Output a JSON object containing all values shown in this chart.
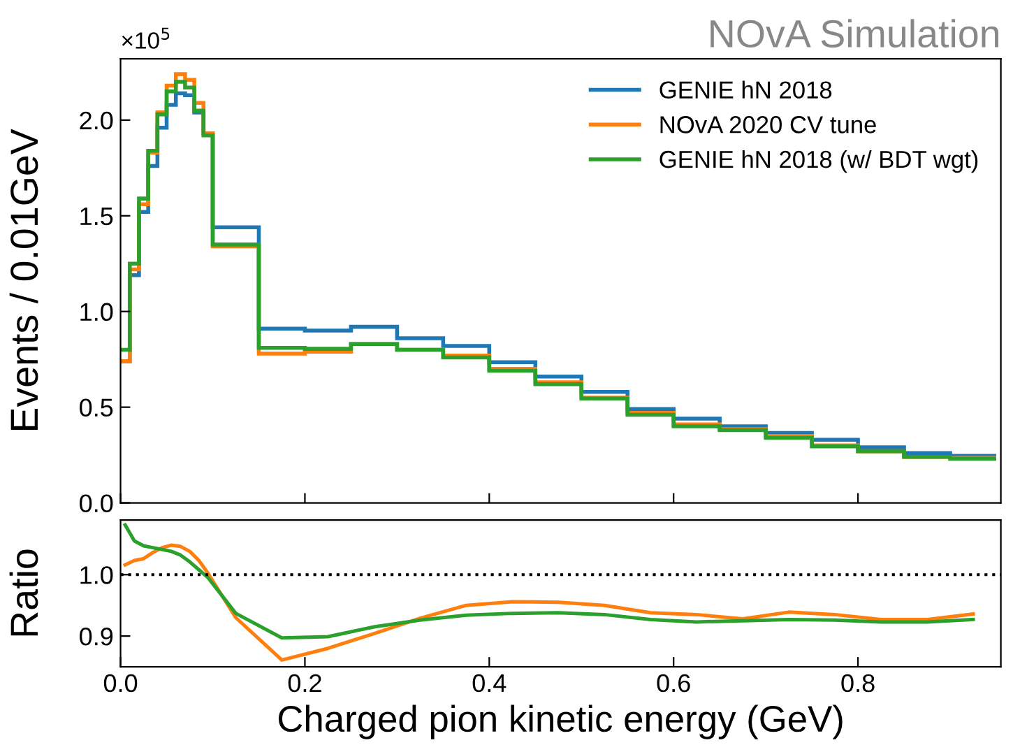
{
  "chart_data": [
    {
      "type": "histogram",
      "title": "NOvA Simulation",
      "ylabel": "Events / 0.01GeV",
      "annotations": [
        "×10$^{5}$"
      ],
      "bins": [
        0,
        0.01,
        0.02,
        0.03,
        0.04,
        0.05,
        0.06,
        0.07,
        0.08,
        0.09,
        0.1,
        0.15,
        0.2,
        0.25,
        0.3,
        0.35,
        0.4,
        0.45,
        0.5,
        0.55,
        0.6,
        0.65,
        0.7,
        0.75,
        0.8,
        0.85,
        0.9,
        0.95
      ],
      "series": [
        {
          "name": "GENIE hN 2018",
          "color": "#1f77b4",
          "values": [
            0.74,
            1.19,
            1.52,
            1.76,
            1.96,
            2.08,
            2.14,
            2.13,
            2.04,
            1.93,
            1.44,
            0.91,
            0.9,
            0.92,
            0.86,
            0.82,
            0.735,
            0.66,
            0.58,
            0.49,
            0.44,
            0.4,
            0.365,
            0.33,
            0.29,
            0.26,
            0.246
          ]
        },
        {
          "name": "NOvA 2020 CV tune",
          "color": "#ff7f0e",
          "values": [
            0.74,
            1.22,
            1.56,
            1.83,
            2.04,
            2.18,
            2.24,
            2.21,
            2.09,
            1.93,
            1.34,
            0.78,
            0.79,
            0.83,
            0.8,
            0.77,
            0.7,
            0.63,
            0.55,
            0.47,
            0.41,
            0.385,
            0.35,
            0.3,
            0.27,
            0.24,
            0.235
          ]
        },
        {
          "name": "GENIE hN 2018 (w/ BDT wgt)",
          "color": "#2ca02c",
          "values": [
            0.8,
            1.25,
            1.59,
            1.84,
            2.03,
            2.15,
            2.2,
            2.17,
            2.05,
            1.92,
            1.35,
            0.81,
            0.805,
            0.83,
            0.8,
            0.76,
            0.69,
            0.62,
            0.545,
            0.46,
            0.4,
            0.38,
            0.34,
            0.295,
            0.27,
            0.24,
            0.23
          ]
        }
      ],
      "xlim": [
        0,
        0.955
      ],
      "xticks": [
        0,
        0.2,
        0.4,
        0.6,
        0.8
      ],
      "tick_labels": "y",
      "ylim": [
        0,
        2.32
      ],
      "yticks": [
        {
          "value": 0,
          "label": "0.0"
        },
        0.5,
        {
          "value": 1,
          "label": "1.0"
        },
        1.5,
        {
          "value": 2,
          "label": "2.0"
        }
      ],
      "legend": "top right",
      "grid": false
    },
    {
      "type": "line",
      "xlabel": "Charged pion kinetic energy (GeV)",
      "ylabel": "Ratio",
      "x": [
        0.005,
        0.015,
        0.025,
        0.035,
        0.045,
        0.055,
        0.065,
        0.075,
        0.085,
        0.095,
        0.125,
        0.175,
        0.225,
        0.275,
        0.325,
        0.375,
        0.425,
        0.475,
        0.525,
        0.575,
        0.625,
        0.675,
        0.725,
        0.775,
        0.825,
        0.875,
        0.925
      ],
      "series": [
        {
          "color": "#ff7f0e",
          "values": [
            1.016,
            1.023,
            1.026,
            1.036,
            1.044,
            1.048,
            1.046,
            1.038,
            1.023,
            1.002,
            0.93,
            0.861,
            0.88,
            0.904,
            0.929,
            0.95,
            0.956,
            0.955,
            0.95,
            0.938,
            0.935,
            0.928,
            0.939,
            0.935,
            0.927,
            0.927,
            0.936
          ]
        },
        {
          "color": "#2ca02c",
          "values": [
            1.081,
            1.055,
            1.047,
            1.044,
            1.041,
            1.038,
            1.032,
            1.021,
            1.008,
            0.995,
            0.937,
            0.897,
            0.899,
            0.915,
            0.926,
            0.934,
            0.937,
            0.938,
            0.935,
            0.927,
            0.923,
            0.925,
            0.927,
            0.926,
            0.923,
            0.923,
            0.927
          ]
        }
      ],
      "xlim": [
        0,
        0.955
      ],
      "xticks": [
        {
          "value": 0,
          "label": "0.0"
        },
        0.2,
        0.4,
        0.6,
        0.8
      ],
      "ylim": [
        0.85,
        1.089
      ],
      "yticks": [
        0.9,
        {
          "value": 1,
          "label": "1.0"
        }
      ],
      "ref_lines": [
        {
          "axis": "y",
          "value": 1.0,
          "color": "#000000",
          "line_style": "dotted"
        }
      ],
      "legend": false,
      "grid": false
    }
  ]
}
